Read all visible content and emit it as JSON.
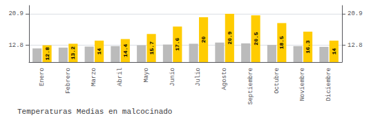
{
  "chart_data": {
    "type": "bar",
    "title": "Temperaturas Medias en malcocinado",
    "categories": [
      "Enero",
      "Febrero",
      "Marzo",
      "Abril",
      "Mayo",
      "Junio",
      "Julio",
      "Agosto",
      "Septiembre",
      "Octubre",
      "Noviembre",
      "Diciembre"
    ],
    "series": [
      {
        "color": "#BBBBBB",
        "values": [
          12.0,
          12.2,
          12.5,
          12.6,
          12.8,
          13.0,
          13.2,
          13.5,
          13.3,
          12.9,
          12.6,
          12.4
        ]
      },
      {
        "color": "#FFCC00",
        "values": [
          12.8,
          13.2,
          14.0,
          14.4,
          15.7,
          17.6,
          20.0,
          20.9,
          20.5,
          18.5,
          16.3,
          14.0
        ],
        "data_labels": true
      }
    ],
    "ylim": [
      8.5,
      23.0
    ],
    "yticks": [
      12.8,
      20.9
    ],
    "grid": true
  }
}
